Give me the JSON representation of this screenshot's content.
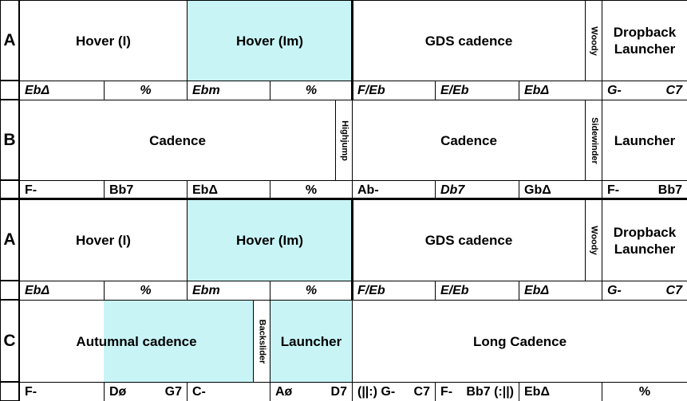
{
  "sections": [
    {
      "label": "A",
      "bricks": [
        "Hover (I)",
        "Hover (Im)",
        "GDS cadence",
        "Woody",
        "Dropback Launcher"
      ],
      "chords": [
        [
          "EbΔ"
        ],
        [
          "%"
        ],
        [
          "Ebm"
        ],
        [
          "%"
        ],
        [
          "F/Eb"
        ],
        [
          "E/Eb"
        ],
        [
          "EbΔ"
        ],
        [
          "G-",
          "C7"
        ]
      ]
    },
    {
      "label": "B",
      "bricks": [
        "Cadence",
        "Highjump",
        "Cadence",
        "Sidewinder",
        "Launcher"
      ],
      "chords": [
        [
          "F-"
        ],
        [
          "Bb7"
        ],
        [
          "EbΔ"
        ],
        [
          "%"
        ],
        [
          "Ab-"
        ],
        [
          "Db7"
        ],
        [
          "GbΔ"
        ],
        [
          "F-",
          "Bb7"
        ]
      ]
    },
    {
      "label": "A",
      "bricks": [
        "Hover (I)",
        "Hover (Im)",
        "GDS cadence",
        "Woody",
        "Dropback Launcher"
      ],
      "chords": [
        [
          "EbΔ"
        ],
        [
          "%"
        ],
        [
          "Ebm"
        ],
        [
          "%"
        ],
        [
          "F/Eb"
        ],
        [
          "E/Eb"
        ],
        [
          "EbΔ"
        ],
        [
          "G-",
          "C7"
        ]
      ]
    },
    {
      "label": "C",
      "bricks": [
        "Autumnal cadence",
        "Backslider",
        "Launcher",
        "Long Cadence"
      ],
      "chords": [
        [
          "F-"
        ],
        [
          "Dø",
          "G7"
        ],
        [
          "C-"
        ],
        [
          "Aø",
          "D7"
        ],
        [
          "(||:) G-",
          "C7"
        ],
        [
          "F-",
          "Bb7 (:||)"
        ],
        [
          "EbΔ"
        ],
        [
          "%"
        ]
      ]
    }
  ]
}
